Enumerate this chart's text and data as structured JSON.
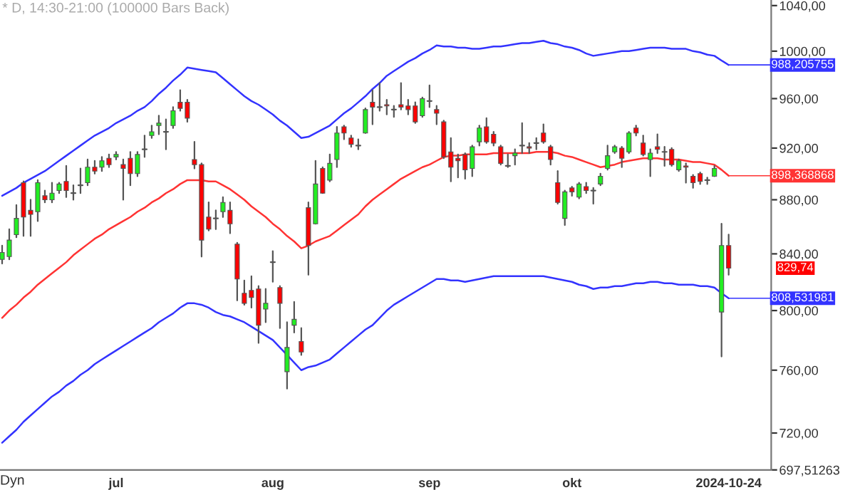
{
  "chart_data": {
    "type": "candlestick",
    "title": "* D, 14:30-21:00 (100000 Bars Back)",
    "categories": [
      null,
      null,
      null,
      null,
      null,
      null,
      null,
      null,
      null,
      null,
      null,
      null,
      null,
      null,
      null,
      null,
      "jul",
      null,
      null,
      null,
      null,
      null,
      null,
      null,
      null,
      null,
      null,
      null,
      null,
      null,
      null,
      null,
      null,
      null,
      null,
      null,
      null,
      null,
      "aug",
      null,
      null,
      null,
      null,
      null,
      null,
      null,
      null,
      null,
      null,
      null,
      null,
      null,
      null,
      null,
      null,
      null,
      null,
      null,
      null,
      null,
      "sep",
      null,
      null,
      null,
      null,
      null,
      null,
      null,
      null,
      null,
      null,
      null,
      null,
      null,
      null,
      null,
      null,
      null,
      null,
      null,
      "okt",
      null,
      null,
      null,
      null,
      null,
      null,
      null,
      null,
      null,
      null,
      null,
      null,
      null,
      null,
      null,
      null,
      null,
      null,
      null,
      null,
      null,
      "2024-10-24"
    ],
    "ohlc": [
      [
        836,
        846,
        833,
        841
      ],
      [
        838,
        858,
        836,
        850
      ],
      [
        854,
        876,
        852,
        866
      ],
      [
        893,
        894,
        853,
        867
      ],
      [
        872,
        880,
        853,
        869
      ],
      [
        871,
        895,
        864,
        893
      ],
      [
        883,
        887,
        878,
        880
      ],
      [
        880,
        893,
        878,
        885
      ],
      [
        887,
        893,
        885,
        892
      ],
      [
        894,
        906,
        882,
        887
      ],
      [
        885,
        891,
        880,
        885
      ],
      [
        891,
        904,
        885,
        891
      ],
      [
        893,
        911,
        891,
        905
      ],
      [
        905,
        910,
        900,
        902
      ],
      [
        905,
        913,
        902,
        910
      ],
      [
        912,
        915,
        905,
        907
      ],
      [
        913,
        917,
        911,
        915
      ],
      [
        907,
        911,
        880,
        904
      ],
      [
        912,
        917,
        891,
        900
      ],
      [
        900,
        917,
        898,
        915
      ],
      [
        919,
        930,
        913,
        919
      ],
      [
        930,
        938,
        928,
        933
      ],
      [
        938,
        946,
        931,
        940
      ],
      [
        933,
        943,
        919,
        933
      ],
      [
        938,
        953,
        936,
        950
      ],
      [
        957,
        967,
        950,
        952
      ],
      [
        957,
        959,
        941,
        944
      ],
      [
        911,
        925,
        904,
        907
      ],
      [
        907,
        908,
        838,
        850
      ],
      [
        867,
        878,
        857,
        858
      ],
      [
        866,
        872,
        858,
        866
      ],
      [
        871,
        882,
        867,
        878
      ],
      [
        872,
        878,
        855,
        862
      ],
      [
        847,
        848,
        807,
        822
      ],
      [
        812,
        821,
        804,
        805
      ],
      [
        814,
        824,
        802,
        809
      ],
      [
        815,
        817,
        778,
        790
      ],
      [
        801,
        815,
        792,
        805
      ],
      [
        834,
        842,
        820,
        834
      ],
      [
        816,
        817,
        788,
        805
      ],
      [
        759,
        792,
        748,
        775
      ],
      [
        790,
        806,
        785,
        794
      ],
      [
        779,
        788,
        770,
        772
      ],
      [
        874,
        878,
        825,
        846
      ],
      [
        862,
        910,
        862,
        892
      ],
      [
        904,
        905,
        885,
        885
      ],
      [
        895,
        915,
        894,
        908
      ],
      [
        911,
        937,
        905,
        932
      ],
      [
        937,
        938,
        927,
        932
      ],
      [
        928,
        930,
        921,
        923
      ],
      [
        922,
        927,
        919,
        922
      ],
      [
        932,
        952,
        932,
        951
      ],
      [
        957,
        967,
        939,
        953
      ],
      [
        953,
        973,
        950,
        953
      ],
      [
        955,
        959,
        947,
        954
      ],
      [
        951,
        954,
        945,
        951
      ],
      [
        955,
        973,
        951,
        953
      ],
      [
        954,
        959,
        947,
        951
      ],
      [
        954,
        957,
        940,
        941
      ],
      [
        946,
        961,
        945,
        960
      ],
      [
        958,
        971,
        953,
        958
      ],
      [
        951,
        954,
        939,
        948
      ],
      [
        941,
        942,
        912,
        913
      ],
      [
        917,
        928,
        894,
        905
      ],
      [
        912,
        915,
        897,
        910
      ],
      [
        915,
        916,
        896,
        903
      ],
      [
        904,
        922,
        898,
        921
      ],
      [
        925,
        938,
        922,
        936
      ],
      [
        937,
        944,
        924,
        925
      ],
      [
        931,
        933,
        922,
        924
      ],
      [
        921,
        922,
        907,
        908
      ],
      [
        906,
        915,
        905,
        906
      ],
      [
        914,
        919,
        907,
        916
      ],
      [
        922,
        940,
        916,
        922
      ],
      [
        921,
        924,
        916,
        920
      ],
      [
        924,
        928,
        919,
        924
      ],
      [
        932,
        939,
        924,
        925
      ],
      [
        921,
        922,
        907,
        911
      ],
      [
        893,
        902,
        877,
        878
      ],
      [
        866,
        887,
        861,
        886
      ],
      [
        889,
        890,
        883,
        886
      ],
      [
        882,
        893,
        881,
        892
      ],
      [
        890,
        893,
        885,
        887
      ],
      [
        887,
        889,
        877,
        887
      ],
      [
        892,
        900,
        891,
        898
      ],
      [
        904,
        922,
        903,
        914
      ],
      [
        917,
        922,
        916,
        921
      ],
      [
        920,
        921,
        905,
        912
      ],
      [
        917,
        933,
        916,
        932
      ],
      [
        936,
        938,
        930,
        932
      ],
      [
        924,
        930,
        914,
        915
      ],
      [
        911,
        919,
        898,
        916
      ],
      [
        921,
        931,
        916,
        919
      ],
      [
        917,
        921,
        906,
        917
      ],
      [
        919,
        920,
        906,
        907
      ],
      [
        903,
        911,
        902,
        910
      ],
      [
        906,
        908,
        893,
        905
      ],
      [
        898,
        899,
        889,
        893
      ],
      [
        900,
        901,
        892,
        894
      ],
      [
        895,
        897,
        892,
        895
      ],
      [
        898,
        906,
        898,
        904
      ],
      [
        799,
        862,
        769,
        846
      ],
      [
        846,
        854,
        825,
        829.74
      ]
    ],
    "value_labels": [
      null,
      null,
      null,
      null,
      null,
      null,
      null,
      null,
      null,
      null,
      null,
      null,
      null,
      null,
      null,
      null,
      null,
      null,
      null,
      null,
      null,
      null,
      null,
      null,
      null,
      null,
      null,
      null,
      null,
      null,
      null,
      null,
      null,
      null,
      null,
      null,
      null,
      null,
      null,
      null,
      null,
      null,
      null,
      null,
      null,
      null,
      null,
      null,
      null,
      null,
      null,
      null,
      null,
      null,
      null,
      null,
      null,
      null,
      null,
      null,
      null,
      null,
      null,
      null,
      null,
      null,
      null,
      null,
      null,
      null,
      null,
      null,
      null,
      null,
      null,
      null,
      null,
      null,
      null,
      null,
      null,
      null,
      null,
      null,
      null,
      null,
      null,
      null,
      null,
      null,
      null,
      null,
      null,
      null,
      null,
      null,
      null,
      null,
      null,
      null,
      null,
      null,
      "829,74"
    ],
    "series": [
      {
        "type": "line",
        "color": "#3333ff",
        "values": [
          883,
          886,
          889,
          893,
          896,
          899,
          902,
          906,
          910,
          914,
          918,
          922,
          926,
          930,
          933,
          936,
          940,
          943,
          946,
          950,
          953,
          958,
          964,
          969,
          975,
          980,
          986,
          985,
          984,
          983,
          982,
          977,
          972,
          967,
          962,
          958,
          955,
          951,
          947,
          942,
          938,
          933,
          928,
          929,
          932,
          935,
          938,
          943,
          948,
          952,
          957,
          962,
          968,
          973,
          979,
          983,
          987,
          991,
          994,
          998,
          1001,
          1005,
          1004,
          1004,
          1003,
          1003,
          1002,
          1002,
          1003,
          1004,
          1004,
          1005,
          1006,
          1007,
          1007,
          1008,
          1009,
          1007,
          1006,
          1004,
          1003,
          1001,
          998,
          996,
          997,
          998,
          999,
          1000,
          1000,
          1001,
          1002,
          1003,
          1003,
          1003,
          1002,
          1002,
          1002,
          1000,
          999,
          997,
          996,
          992,
          988.205755
        ],
        "value_labels": [
          null,
          null,
          null,
          null,
          null,
          null,
          null,
          null,
          null,
          null,
          null,
          null,
          null,
          null,
          null,
          null,
          null,
          null,
          null,
          null,
          null,
          null,
          null,
          null,
          null,
          null,
          null,
          null,
          null,
          null,
          null,
          null,
          null,
          null,
          null,
          null,
          null,
          null,
          null,
          null,
          null,
          null,
          null,
          null,
          null,
          null,
          null,
          null,
          null,
          null,
          null,
          null,
          null,
          null,
          null,
          null,
          null,
          null,
          null,
          null,
          null,
          null,
          null,
          null,
          null,
          null,
          null,
          null,
          null,
          null,
          null,
          null,
          null,
          null,
          null,
          null,
          null,
          null,
          null,
          null,
          null,
          null,
          null,
          null,
          null,
          null,
          null,
          null,
          null,
          null,
          null,
          null,
          null,
          null,
          null,
          null,
          null,
          null,
          null,
          null,
          null,
          null,
          "988,205755"
        ]
      },
      {
        "type": "line",
        "color": "#ff3333",
        "values": [
          795,
          800,
          804,
          809,
          813,
          818,
          822,
          826,
          830,
          834,
          839,
          843,
          847,
          851,
          854,
          858,
          861,
          864,
          867,
          871,
          874,
          878,
          881,
          885,
          888,
          892,
          895,
          895,
          895,
          894,
          894,
          891,
          888,
          884,
          880,
          875,
          871,
          867,
          862,
          858,
          853,
          849,
          844,
          846,
          849,
          851,
          853,
          857,
          861,
          865,
          869,
          875,
          880,
          884,
          888,
          892,
          896,
          899,
          902,
          905,
          907,
          910,
          913,
          914,
          914,
          915,
          915,
          915,
          915,
          916,
          916,
          916,
          916,
          916,
          916,
          917,
          917,
          917,
          916,
          914,
          913,
          911,
          909,
          907,
          905,
          906,
          907,
          909,
          910,
          911,
          912,
          912,
          912,
          911,
          911,
          911,
          910,
          909,
          909,
          908,
          907,
          903,
          898.368868
        ],
        "value_labels": [
          null,
          null,
          null,
          null,
          null,
          null,
          null,
          null,
          null,
          null,
          null,
          null,
          null,
          null,
          null,
          null,
          null,
          null,
          null,
          null,
          null,
          null,
          null,
          null,
          null,
          null,
          null,
          null,
          null,
          null,
          null,
          null,
          null,
          null,
          null,
          null,
          null,
          null,
          null,
          null,
          null,
          null,
          null,
          null,
          null,
          null,
          null,
          null,
          null,
          null,
          null,
          null,
          null,
          null,
          null,
          null,
          null,
          null,
          null,
          null,
          null,
          null,
          null,
          null,
          null,
          null,
          null,
          null,
          null,
          null,
          null,
          null,
          null,
          null,
          null,
          null,
          null,
          null,
          null,
          null,
          null,
          null,
          null,
          null,
          null,
          null,
          null,
          null,
          null,
          null,
          null,
          null,
          null,
          null,
          null,
          null,
          null,
          null,
          null,
          null,
          null,
          null,
          "898,368868"
        ]
      },
      {
        "type": "line",
        "color": "#3333ff",
        "values": [
          714,
          718,
          722,
          727,
          731,
          735,
          739,
          743,
          746,
          750,
          753,
          757,
          760,
          764,
          767,
          770,
          773,
          776,
          779,
          782,
          785,
          788,
          792,
          795,
          798,
          802,
          805,
          805,
          804,
          802,
          799,
          797,
          796,
          794,
          792,
          789,
          786,
          783,
          780,
          775,
          770,
          765,
          760,
          762,
          763,
          765,
          767,
          771,
          775,
          779,
          783,
          787,
          790,
          795,
          800,
          804,
          807,
          810,
          813,
          816,
          819,
          822,
          822,
          821,
          821,
          820,
          821,
          822,
          823,
          824,
          824,
          824,
          824,
          824,
          824,
          824,
          824,
          823,
          822,
          821,
          820,
          818,
          817,
          815,
          816,
          816,
          817,
          817,
          818,
          819,
          819,
          820,
          820,
          819,
          819,
          818,
          818,
          818,
          817,
          817,
          816,
          812,
          808.531981
        ],
        "value_labels": [
          null,
          null,
          null,
          null,
          null,
          null,
          null,
          null,
          null,
          null,
          null,
          null,
          null,
          null,
          null,
          null,
          null,
          null,
          null,
          null,
          null,
          null,
          null,
          null,
          null,
          null,
          null,
          null,
          null,
          null,
          null,
          null,
          null,
          null,
          null,
          null,
          null,
          null,
          null,
          null,
          null,
          null,
          null,
          null,
          null,
          null,
          null,
          null,
          null,
          null,
          null,
          null,
          null,
          null,
          null,
          null,
          null,
          null,
          null,
          null,
          null,
          null,
          null,
          null,
          null,
          null,
          null,
          null,
          null,
          null,
          null,
          null,
          null,
          null,
          null,
          null,
          null,
          null,
          null,
          null,
          null,
          null,
          null,
          null,
          null,
          null,
          null,
          null,
          null,
          null,
          null,
          null,
          null,
          null,
          null,
          null,
          null,
          null,
          null,
          null,
          null,
          null,
          "808,531981"
        ]
      }
    ],
    "log": true,
    "ylim": [
      697.51263,
      1045
    ],
    "yticks": [
      {
        "value": 697.51263,
        "label": "697,51263"
      },
      {
        "value": 720,
        "label": "720,00"
      },
      {
        "value": 760,
        "label": "760,00"
      },
      {
        "value": 800,
        "label": "800,00"
      },
      {
        "value": 840,
        "label": "840,00"
      },
      {
        "value": 880,
        "label": "880,00"
      },
      {
        "value": 920,
        "label": "920,00"
      },
      {
        "value": 960,
        "label": "960,00"
      },
      {
        "value": 1000,
        "label": "1000,00"
      },
      {
        "value": 1040,
        "label": "1040,00"
      }
    ],
    "annotations": [
      "Dyn"
    ]
  }
}
